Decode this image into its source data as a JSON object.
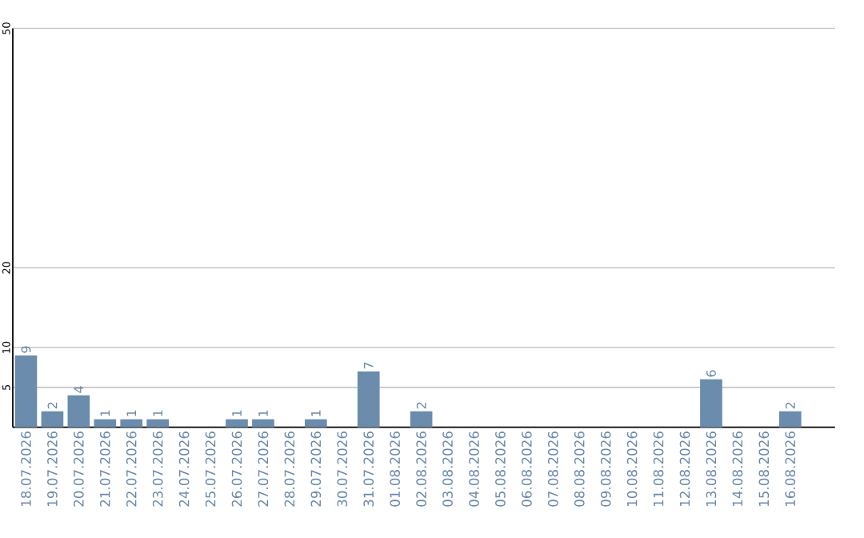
{
  "chart_data": {
    "type": "bar",
    "categories": [
      "18.07.2026",
      "19.07.2026",
      "20.07.2026",
      "21.07.2026",
      "22.07.2026",
      "23.07.2026",
      "24.07.2026",
      "25.07.2026",
      "26.07.2026",
      "27.07.2026",
      "28.07.2026",
      "29.07.2026",
      "30.07.2026",
      "31.07.2026",
      "01.08.2026",
      "02.08.2026",
      "03.08.2026",
      "04.08.2026",
      "05.08.2026",
      "06.08.2026",
      "07.08.2026",
      "08.08.2026",
      "09.08.2026",
      "10.08.2026",
      "11.08.2026",
      "12.08.2026",
      "13.08.2026",
      "14.08.2026",
      "15.08.2026",
      "16.08.2026"
    ],
    "values": [
      9,
      2,
      4,
      1,
      1,
      1,
      0,
      0,
      1,
      1,
      0,
      1,
      0,
      7,
      0,
      2,
      0,
      0,
      0,
      0,
      0,
      0,
      0,
      0,
      0,
      0,
      6,
      0,
      0,
      2
    ],
    "value_labels": [
      "9",
      "2",
      "4",
      "1",
      "1",
      "1",
      null,
      null,
      "1",
      "1",
      null,
      "1",
      null,
      "7",
      null,
      "2",
      null,
      null,
      null,
      null,
      null,
      null,
      null,
      null,
      null,
      null,
      "6",
      null,
      null,
      "2"
    ],
    "color": "#6b8cac",
    "ylim": [
      0,
      50
    ],
    "yticks": [
      5,
      10,
      20,
      50
    ],
    "grid": "y"
  }
}
